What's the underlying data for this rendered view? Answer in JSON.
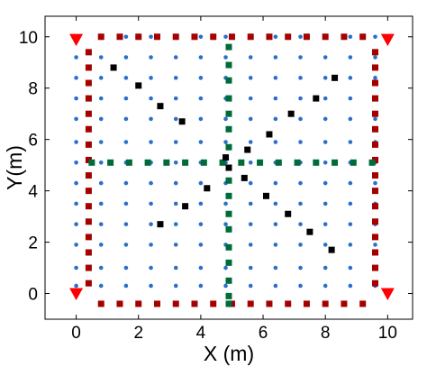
{
  "chart_data": {
    "type": "scatter",
    "title": "",
    "xlabel": "X (m)",
    "ylabel": "Y(m)",
    "xlim": [
      -1,
      10.8
    ],
    "ylim": [
      -1,
      10.8
    ],
    "xticks": [
      "0",
      "2",
      "4",
      "6",
      "8",
      "10"
    ],
    "yticks": [
      "0",
      "2",
      "4",
      "6",
      "8",
      "10"
    ],
    "grid": false,
    "legend": "none",
    "colors": {
      "grid_points": "#2a6fc9",
      "perimeter": "#a50000",
      "cross": "#006b3a",
      "anchors": "#ff0000",
      "path_points": "#000000"
    },
    "series": [
      {
        "marker": "circle",
        "grid_x": [
          0,
          0.8,
          1.6,
          2.4,
          3.2,
          4.0,
          4.8,
          5.6,
          6.4,
          7.2,
          8.0,
          8.8,
          9.6
        ],
        "grid_y": [
          0.3,
          1.0,
          1.9,
          2.7,
          3.5,
          4.3,
          5.1,
          5.9,
          6.8,
          7.6,
          8.4,
          9.2,
          10.0
        ]
      },
      {
        "marker": "square",
        "points": [
          [
            0.4,
            0.4
          ],
          [
            0.4,
            1.0
          ],
          [
            0.4,
            1.6
          ],
          [
            0.4,
            2.2
          ],
          [
            0.4,
            2.8
          ],
          [
            0.4,
            3.4
          ],
          [
            0.4,
            4.0
          ],
          [
            0.4,
            4.6
          ],
          [
            0.4,
            5.2
          ],
          [
            0.4,
            5.8
          ],
          [
            0.4,
            6.4
          ],
          [
            0.4,
            7.0
          ],
          [
            0.4,
            7.6
          ],
          [
            0.4,
            8.2
          ],
          [
            0.4,
            8.8
          ],
          [
            0.4,
            9.4
          ],
          [
            9.6,
            0.4
          ],
          [
            9.6,
            1.0
          ],
          [
            9.6,
            1.6
          ],
          [
            9.6,
            2.2
          ],
          [
            9.6,
            2.8
          ],
          [
            9.6,
            3.4
          ],
          [
            9.6,
            4.0
          ],
          [
            9.6,
            4.6
          ],
          [
            9.6,
            5.2
          ],
          [
            9.6,
            5.8
          ],
          [
            9.6,
            6.4
          ],
          [
            9.6,
            7.0
          ],
          [
            9.6,
            7.6
          ],
          [
            9.6,
            8.2
          ],
          [
            9.6,
            8.8
          ],
          [
            9.6,
            9.4
          ],
          [
            0.8,
            10.0
          ],
          [
            1.4,
            10.0
          ],
          [
            2.0,
            10.0
          ],
          [
            2.6,
            10.0
          ],
          [
            3.2,
            10.0
          ],
          [
            3.8,
            10.0
          ],
          [
            4.4,
            10.0
          ],
          [
            5.0,
            10.0
          ],
          [
            5.6,
            10.0
          ],
          [
            6.2,
            10.0
          ],
          [
            6.8,
            10.0
          ],
          [
            7.4,
            10.0
          ],
          [
            8.0,
            10.0
          ],
          [
            8.6,
            10.0
          ],
          [
            9.2,
            10.0
          ],
          [
            0.8,
            -0.4
          ],
          [
            1.4,
            -0.4
          ],
          [
            2.0,
            -0.4
          ],
          [
            2.6,
            -0.4
          ],
          [
            3.2,
            -0.4
          ],
          [
            3.8,
            -0.4
          ],
          [
            4.4,
            -0.4
          ],
          [
            5.0,
            -0.4
          ],
          [
            5.6,
            -0.4
          ],
          [
            6.2,
            -0.4
          ],
          [
            6.8,
            -0.4
          ],
          [
            7.4,
            -0.4
          ],
          [
            8.0,
            -0.4
          ],
          [
            8.6,
            -0.4
          ],
          [
            9.2,
            -0.4
          ]
        ]
      },
      {
        "marker": "square",
        "points": [
          [
            4.9,
            9.6
          ],
          [
            4.9,
            8.9
          ],
          [
            4.9,
            8.3
          ],
          [
            4.9,
            7.6
          ],
          [
            4.9,
            7.0
          ],
          [
            4.9,
            6.4
          ],
          [
            4.9,
            5.7
          ],
          [
            4.9,
            4.4
          ],
          [
            4.9,
            3.8
          ],
          [
            4.9,
            3.1
          ],
          [
            4.9,
            2.5
          ],
          [
            4.9,
            1.8
          ],
          [
            4.9,
            1.2
          ],
          [
            4.9,
            0.5
          ],
          [
            4.9,
            -0.1
          ],
          [
            4.9,
            -0.4
          ],
          [
            0.5,
            5.1
          ],
          [
            1.1,
            5.1
          ],
          [
            1.7,
            5.1
          ],
          [
            2.3,
            5.1
          ],
          [
            2.9,
            5.1
          ],
          [
            3.5,
            5.1
          ],
          [
            4.1,
            5.1
          ],
          [
            4.7,
            5.1
          ],
          [
            5.3,
            5.1
          ],
          [
            5.9,
            5.1
          ],
          [
            6.5,
            5.1
          ],
          [
            7.1,
            5.1
          ],
          [
            7.7,
            5.1
          ],
          [
            8.3,
            5.1
          ],
          [
            8.9,
            5.1
          ],
          [
            9.5,
            5.1
          ]
        ]
      },
      {
        "marker": "triangle-down",
        "points": [
          [
            0,
            9.9
          ],
          [
            10,
            9.9
          ],
          [
            0,
            0.0
          ],
          [
            10,
            0.0
          ]
        ]
      },
      {
        "marker": "square",
        "points": [
          [
            1.2,
            8.8
          ],
          [
            2.0,
            8.1
          ],
          [
            2.7,
            7.3
          ],
          [
            3.4,
            6.7
          ],
          [
            8.3,
            8.4
          ],
          [
            7.7,
            7.6
          ],
          [
            6.9,
            7.0
          ],
          [
            6.2,
            6.2
          ],
          [
            5.5,
            5.6
          ],
          [
            4.8,
            5.3
          ],
          [
            4.9,
            4.9
          ],
          [
            4.2,
            4.1
          ],
          [
            3.5,
            3.4
          ],
          [
            2.7,
            2.7
          ],
          [
            5.4,
            4.5
          ],
          [
            6.1,
            3.8
          ],
          [
            6.8,
            3.1
          ],
          [
            7.5,
            2.4
          ],
          [
            8.2,
            1.7
          ]
        ]
      }
    ]
  }
}
